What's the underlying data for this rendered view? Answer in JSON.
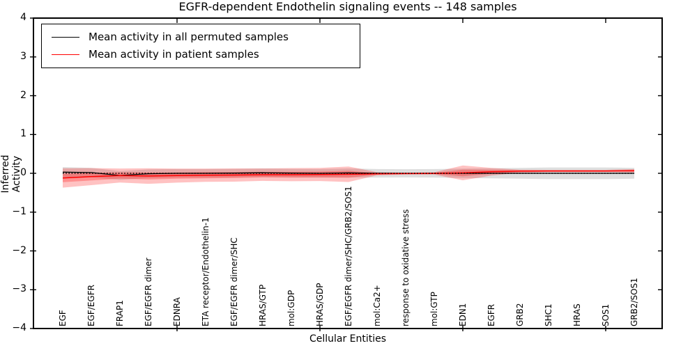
{
  "chart_data": {
    "type": "line",
    "title": "EGFR-dependent Endothelin signaling events -- 148 samples",
    "xlabel": "Cellular Entities",
    "ylabel": "Inferred Activity",
    "ylim": [
      -4,
      4
    ],
    "yticks": [
      "4",
      "3",
      "2",
      "1",
      "0",
      "−1",
      "−2",
      "−3",
      "−4"
    ],
    "grid": false,
    "legend_position": "upper-left",
    "categories": [
      "EGF",
      "EGF/EGFR",
      "FRAP1",
      "EGF/EGFR dimer",
      "EDNRA",
      "ETA receptor/Endothelin-1",
      "EGF/EGFR dimer/SHC",
      "HRAS/GTP",
      "mol:GDP",
      "HRAS/GDP",
      "EGF/EGFR dimer/SHC/GRB2/SOS1",
      "mol:Ca2+",
      "response to oxidative stress",
      "mol:GTP",
      "EDN1",
      "EGFR",
      "GRB2",
      "SHC1",
      "HRAS",
      "SOS1",
      "GRB2/SOS1"
    ],
    "x_major_tick_indices": [
      4,
      9,
      14,
      19
    ],
    "series": [
      {
        "name": "Mean activity in all permuted samples",
        "color": "#000000",
        "width": 1.3,
        "values": [
          0.03,
          0.02,
          -0.055,
          -0.01,
          0.0,
          0.0,
          0.005,
          0.015,
          0.005,
          0.0,
          0.01,
          0.0,
          0.0,
          0.0,
          0.0,
          0.0,
          0.0,
          0.0,
          0.0,
          0.0,
          0.0
        ]
      },
      {
        "name": "Mean activity in patient samples",
        "color": "#ff0000",
        "width": 1.5,
        "values": [
          -0.12,
          -0.085,
          -0.057,
          -0.07,
          -0.06,
          -0.05,
          -0.045,
          -0.035,
          -0.035,
          -0.03,
          -0.025,
          -0.012,
          -0.008,
          -0.003,
          0.01,
          0.04,
          0.055,
          0.06,
          0.06,
          0.06,
          0.065
        ]
      }
    ],
    "bands": [
      {
        "name": "permuted-samples-range",
        "series": 0,
        "color": "rgba(0,0,0,0.13)",
        "halfwidths": [
          0.13,
          0.12,
          0.115,
          0.11,
          0.11,
          0.11,
          0.11,
          0.11,
          0.11,
          0.11,
          0.115,
          0.11,
          0.105,
          0.11,
          0.12,
          0.13,
          0.14,
          0.15,
          0.15,
          0.15,
          0.14
        ]
      },
      {
        "name": "patient-samples-range-outer",
        "series": 1,
        "color": "rgba(255,0,0,0.24)",
        "halfwidths": [
          0.25,
          0.22,
          0.18,
          0.2,
          0.18,
          0.17,
          0.17,
          0.16,
          0.17,
          0.17,
          0.2,
          0.04,
          0.025,
          0.03,
          0.19,
          0.1,
          0.04,
          0.03,
          0.03,
          0.03,
          0.045
        ]
      },
      {
        "name": "patient-samples-range-inner",
        "series": 1,
        "color": "rgba(255,0,0,0.26)",
        "halfwidths": [
          0.11,
          0.1,
          0.08,
          0.09,
          0.08,
          0.08,
          0.075,
          0.07,
          0.075,
          0.075,
          0.09,
          0.02,
          0.012,
          0.015,
          0.085,
          0.05,
          0.02,
          0.015,
          0.015,
          0.015,
          0.022
        ]
      }
    ],
    "zero_line": {
      "y": 0,
      "style": "dotted",
      "color": "#000000"
    }
  }
}
